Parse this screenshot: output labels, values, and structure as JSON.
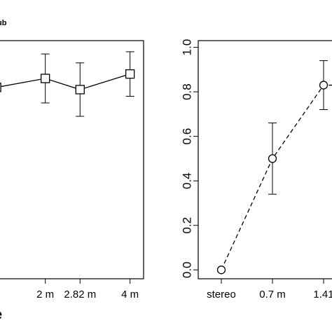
{
  "chart_data": [
    {
      "type": "line",
      "title": "ub",
      "x_label": "e",
      "x": [
        0.85,
        2,
        2.82,
        4
      ],
      "series": [
        {
          "values": [
            0.82,
            0.86,
            0.81,
            0.88
          ],
          "errors": [
            null,
            0.11,
            0.12,
            0.1
          ],
          "color": "#000000",
          "marker": "square",
          "dash": false
        }
      ],
      "xlim": [
        0.6,
        4.32
      ],
      "xticks": [
        {
          "value": 2,
          "label": "2 m"
        },
        {
          "value": 2.82,
          "label": "2.82 m"
        },
        {
          "value": 4,
          "label": "4 m"
        }
      ],
      "ylim": [
        -0.04,
        1.03
      ]
    },
    {
      "type": "line",
      "categories": [
        "stereo",
        "0.7 m",
        "1.41"
      ],
      "series": [
        {
          "values": [
            0.0,
            0.5,
            0.83
          ],
          "errors": [
            null,
            0.16,
            0.11
          ],
          "color": "#000000",
          "marker": "circle",
          "dash": true
        }
      ],
      "ylim": [
        -0.04,
        1.03
      ],
      "yticks": [
        {
          "value": 0,
          "label": "0.0"
        },
        {
          "value": 0.2,
          "label": "0.2"
        },
        {
          "value": 0.4,
          "label": "0.4"
        },
        {
          "value": 0.6,
          "label": "0.6"
        },
        {
          "value": 0.8,
          "label": "0.8"
        },
        {
          "value": 1,
          "label": "1.0"
        }
      ]
    }
  ]
}
